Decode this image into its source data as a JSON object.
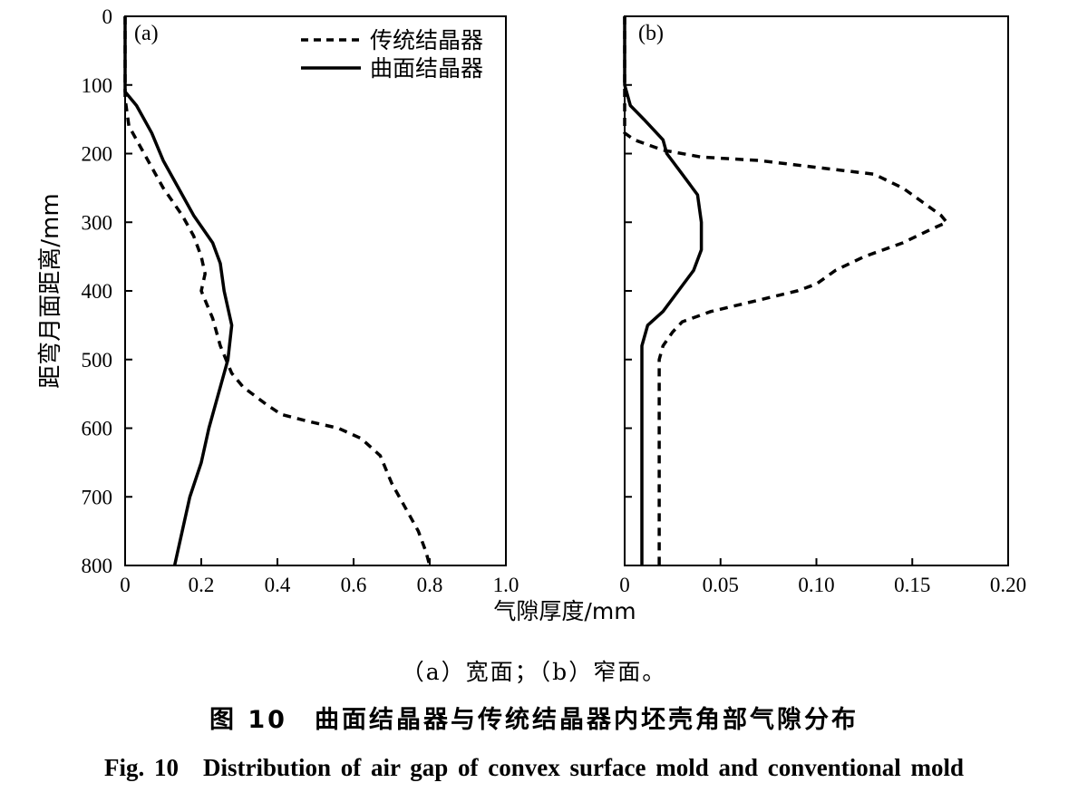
{
  "chart_data": [
    {
      "type": "line",
      "panel_label": "(a)",
      "ylabel": "距弯月面距离/mm",
      "xlim": [
        0,
        1.0
      ],
      "ylim": [
        0,
        800
      ],
      "y_inverted": true,
      "x_ticks": [
        "0",
        "0.2",
        "0.4",
        "0.6",
        "0.8",
        "1.0"
      ],
      "y_ticks": [
        "0",
        "100",
        "200",
        "300",
        "400",
        "500",
        "600",
        "700",
        "800"
      ],
      "legend_position": "top-right",
      "series": [
        {
          "name": "传统结晶器",
          "style": "dashed",
          "points": [
            [
              0,
              0
            ],
            [
              0,
              120
            ],
            [
              0.01,
              160
            ],
            [
              0.04,
              190
            ],
            [
              0.07,
              220
            ],
            [
              0.1,
              250
            ],
            [
              0.15,
              290
            ],
            [
              0.18,
              320
            ],
            [
              0.2,
              350
            ],
            [
              0.21,
              375
            ],
            [
              0.2,
              400
            ],
            [
              0.23,
              440
            ],
            [
              0.25,
              480
            ],
            [
              0.28,
              520
            ],
            [
              0.31,
              540
            ],
            [
              0.37,
              565
            ],
            [
              0.41,
              580
            ],
            [
              0.48,
              590
            ],
            [
              0.56,
              600
            ],
            [
              0.62,
              615
            ],
            [
              0.67,
              640
            ],
            [
              0.7,
              680
            ],
            [
              0.73,
              710
            ],
            [
              0.77,
              750
            ],
            [
              0.79,
              780
            ],
            [
              0.8,
              800
            ]
          ]
        },
        {
          "name": "曲面结晶器",
          "style": "solid",
          "points": [
            [
              0,
              0
            ],
            [
              0,
              110
            ],
            [
              0.03,
              130
            ],
            [
              0.07,
              170
            ],
            [
              0.1,
              210
            ],
            [
              0.14,
              250
            ],
            [
              0.18,
              290
            ],
            [
              0.23,
              330
            ],
            [
              0.25,
              360
            ],
            [
              0.26,
              400
            ],
            [
              0.28,
              450
            ],
            [
              0.27,
              500
            ],
            [
              0.24,
              560
            ],
            [
              0.22,
              600
            ],
            [
              0.2,
              650
            ],
            [
              0.17,
              700
            ],
            [
              0.15,
              750
            ],
            [
              0.13,
              800
            ]
          ]
        }
      ]
    },
    {
      "type": "line",
      "panel_label": "(b)",
      "xlim": [
        0,
        0.2
      ],
      "ylim": [
        0,
        800
      ],
      "y_inverted": true,
      "x_ticks": [
        "0",
        "0.05",
        "0.10",
        "0.15",
        "0.20"
      ],
      "xlabel": "气隙厚度/mm",
      "series": [
        {
          "name": "传统结晶器",
          "style": "dashed",
          "points": [
            [
              0,
              0
            ],
            [
              0,
              170
            ],
            [
              0.005,
              180
            ],
            [
              0.02,
              195
            ],
            [
              0.04,
              205
            ],
            [
              0.07,
              210
            ],
            [
              0.1,
              220
            ],
            [
              0.13,
              230
            ],
            [
              0.145,
              250
            ],
            [
              0.155,
              270
            ],
            [
              0.165,
              290
            ],
            [
              0.168,
              300
            ],
            [
              0.16,
              310
            ],
            [
              0.145,
              330
            ],
            [
              0.125,
              350
            ],
            [
              0.11,
              370
            ],
            [
              0.1,
              390
            ],
            [
              0.09,
              400
            ],
            [
              0.075,
              410
            ],
            [
              0.06,
              420
            ],
            [
              0.045,
              430
            ],
            [
              0.03,
              445
            ],
            [
              0.025,
              460
            ],
            [
              0.02,
              480
            ],
            [
              0.018,
              500
            ],
            [
              0.018,
              800
            ]
          ]
        },
        {
          "name": "曲面结晶器",
          "style": "solid",
          "points": [
            [
              0,
              0
            ],
            [
              0,
              100
            ],
            [
              0.003,
              130
            ],
            [
              0.01,
              150
            ],
            [
              0.02,
              180
            ],
            [
              0.022,
              200
            ],
            [
              0.03,
              230
            ],
            [
              0.038,
              260
            ],
            [
              0.04,
              300
            ],
            [
              0.04,
              340
            ],
            [
              0.036,
              370
            ],
            [
              0.028,
              400
            ],
            [
              0.02,
              430
            ],
            [
              0.012,
              450
            ],
            [
              0.009,
              480
            ],
            [
              0.009,
              800
            ]
          ]
        }
      ]
    }
  ],
  "captions": {
    "sub": "（a）宽面；（b）窄面。",
    "cn": "图 10　曲面结晶器与传统结晶器内坯壳角部气隙分布",
    "en": "Fig. 10　Distribution of air gap of convex surface mold and conventional mold"
  }
}
